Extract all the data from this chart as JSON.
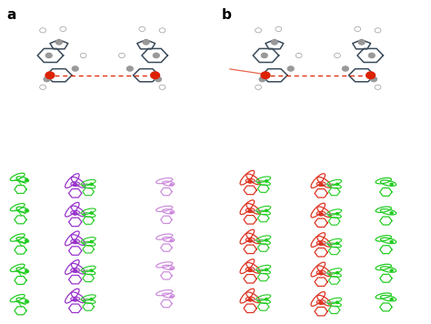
{
  "figure_width": 4.74,
  "figure_height": 3.56,
  "dpi": 100,
  "background_color": "#ffffff",
  "label_a": "a",
  "label_b": "b",
  "label_fontsize": 11,
  "label_fontweight": "bold",
  "green_color": "#22cc22",
  "purple_color": "#9933cc",
  "purple_light": "#cc88dd",
  "red_color": "#dd3322",
  "red_light": "#ee6655",
  "gray_bond": "#999999",
  "atom_blue": "#3a4a5a",
  "atom_gray": "#999999",
  "atom_red": "#dd2200"
}
